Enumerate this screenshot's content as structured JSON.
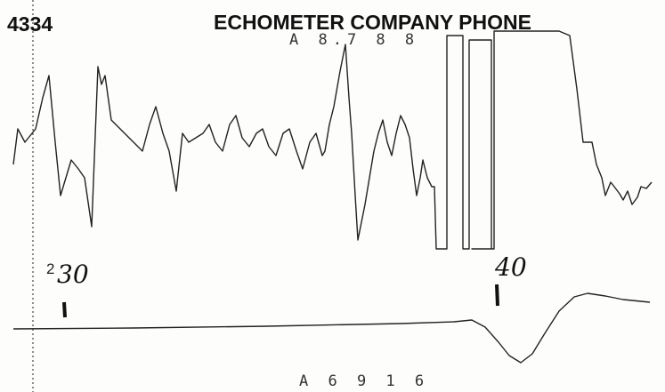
{
  "header": {
    "left": "4334",
    "title": "ECHOMETER COMPANY PHONE"
  },
  "readouts": {
    "top": "A 8.7 8 8",
    "bottom": "A 6 9 1 6"
  },
  "annotations": [
    "2",
    "30",
    "40"
  ]
}
